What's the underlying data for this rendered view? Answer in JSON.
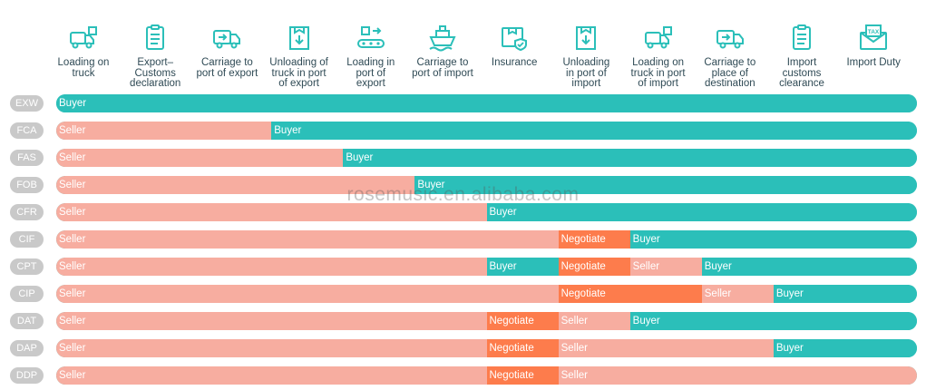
{
  "colors": {
    "seller": "#f7ada0",
    "buyer": "#2bbfb9",
    "negotiate": "#fd7c4c",
    "term": "#c9c9c9",
    "icon": "#2bbfb9"
  },
  "columns": [
    {
      "label": "Loading on\ntruck",
      "icon": "truck-loading-icon"
    },
    {
      "label": "Export–\nCustoms\ndeclaration",
      "icon": "clipboard-icon"
    },
    {
      "label": "Carriage to\nport of export",
      "icon": "delivery-truck-icon"
    },
    {
      "label": "Unloading of\ntruck in port\nof export",
      "icon": "unloading-box-icon"
    },
    {
      "label": "Loading in\nport of\nexport",
      "icon": "conveyor-icon"
    },
    {
      "label": "Carriage to\nport of import",
      "icon": "ship-icon"
    },
    {
      "label": "Insurance",
      "icon": "insured-box-icon"
    },
    {
      "label": "Unloading\nin port of\nimport",
      "icon": "unloading-box-icon"
    },
    {
      "label": "Loading on\ntruck in port\nof import",
      "icon": "truck-loading-icon"
    },
    {
      "label": "Carriage to\nplace of\ndestination",
      "icon": "delivery-truck-icon"
    },
    {
      "label": "Import\ncustoms\nclearance",
      "icon": "clipboard-icon"
    },
    {
      "label": "Import Duty",
      "icon": "tax-envelope-icon"
    }
  ],
  "tax_icon_text": "TAX",
  "rows": [
    {
      "term": "EXW",
      "segments": [
        {
          "party": "buyer",
          "label": "Buyer",
          "span": 12
        }
      ]
    },
    {
      "term": "FCA",
      "segments": [
        {
          "party": "seller",
          "label": "Seller",
          "span": 3
        },
        {
          "party": "buyer",
          "label": "Buyer",
          "span": 9
        }
      ]
    },
    {
      "term": "FAS",
      "segments": [
        {
          "party": "seller",
          "label": "Seller",
          "span": 4
        },
        {
          "party": "buyer",
          "label": "Buyer",
          "span": 8
        }
      ]
    },
    {
      "term": "FOB",
      "segments": [
        {
          "party": "seller",
          "label": "Seller",
          "span": 5
        },
        {
          "party": "buyer",
          "label": "Buyer",
          "span": 7
        }
      ]
    },
    {
      "term": "CFR",
      "segments": [
        {
          "party": "seller",
          "label": "Seller",
          "span": 6
        },
        {
          "party": "buyer",
          "label": "Buyer",
          "span": 6
        }
      ]
    },
    {
      "term": "CIF",
      "segments": [
        {
          "party": "seller",
          "label": "Seller",
          "span": 7
        },
        {
          "party": "negotiate",
          "label": "Negotiate",
          "span": 1
        },
        {
          "party": "buyer",
          "label": "Buyer",
          "span": 4
        }
      ]
    },
    {
      "term": "CPT",
      "segments": [
        {
          "party": "seller",
          "label": "Seller",
          "span": 6
        },
        {
          "party": "buyer",
          "label": "Buyer",
          "span": 1
        },
        {
          "party": "negotiate",
          "label": "Negotiate",
          "span": 1
        },
        {
          "party": "seller",
          "label": "Seller",
          "span": 1
        },
        {
          "party": "buyer",
          "label": "Buyer",
          "span": 3
        }
      ]
    },
    {
      "term": "CIP",
      "segments": [
        {
          "party": "seller",
          "label": "Seller",
          "span": 7
        },
        {
          "party": "negotiate",
          "label": "Negotiate",
          "span": 2
        },
        {
          "party": "seller",
          "label": "Seller",
          "span": 1
        },
        {
          "party": "buyer",
          "label": "Buyer",
          "span": 2
        }
      ]
    },
    {
      "term": "DAT",
      "segments": [
        {
          "party": "seller",
          "label": "Seller",
          "span": 6
        },
        {
          "party": "negotiate",
          "label": "Negotiate",
          "span": 1
        },
        {
          "party": "seller",
          "label": "Seller",
          "span": 1
        },
        {
          "party": "buyer",
          "label": "Buyer",
          "span": 4
        }
      ]
    },
    {
      "term": "DAP",
      "segments": [
        {
          "party": "seller",
          "label": "Seller",
          "span": 6
        },
        {
          "party": "negotiate",
          "label": "Negotiate",
          "span": 1
        },
        {
          "party": "seller",
          "label": "Seller",
          "span": 3
        },
        {
          "party": "buyer",
          "label": "Buyer",
          "span": 2
        }
      ]
    },
    {
      "term": "DDP",
      "segments": [
        {
          "party": "seller",
          "label": "Seller",
          "span": 6
        },
        {
          "party": "negotiate",
          "label": "Negotiate",
          "span": 1
        },
        {
          "party": "seller",
          "label": "Seller",
          "span": 5
        }
      ]
    }
  ],
  "watermark": "rosemusic.en.alibaba.com"
}
